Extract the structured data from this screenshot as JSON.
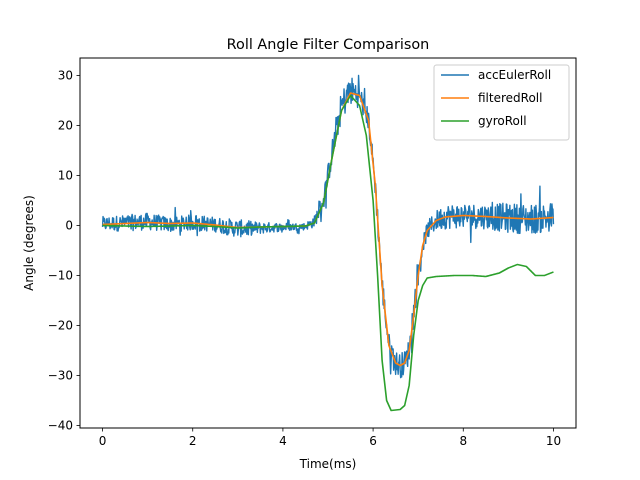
{
  "chart_data": {
    "type": "line",
    "title": "Roll Angle Filter Comparison",
    "xlabel": "Time(ms)",
    "ylabel": "Angle (degrees)",
    "xlim": [
      -0.5,
      10.5
    ],
    "ylim": [
      -40.5,
      33.5
    ],
    "xticks": [
      0,
      2,
      4,
      6,
      8,
      10
    ],
    "yticks": [
      -40,
      -30,
      -20,
      -10,
      0,
      10,
      20,
      30
    ],
    "grid": false,
    "legend": {
      "placement": "top-right"
    },
    "series": [
      {
        "name": "accEulerRoll",
        "color": "#1f77b4",
        "noisy": true,
        "x": [
          0,
          0.5,
          1,
          1.5,
          2,
          2.5,
          3,
          3.5,
          4,
          4.5,
          4.7,
          4.9,
          5.1,
          5.3,
          5.5,
          5.7,
          5.9,
          6.05,
          6.2,
          6.35,
          6.5,
          6.6,
          6.7,
          6.8,
          6.9,
          7.0,
          7.1,
          7.2,
          7.4,
          7.6,
          8.0,
          8.5,
          9.0,
          9.5,
          10
        ],
        "y": [
          0.3,
          0.5,
          0.8,
          0.2,
          0.6,
          0.2,
          -0.6,
          -0.5,
          -0.3,
          -0.2,
          0.8,
          5,
          15,
          24,
          27,
          26,
          21,
          8,
          -12,
          -24,
          -27.5,
          -28,
          -27.5,
          -25,
          -18,
          -10,
          -4,
          -1,
          1,
          1.8,
          2,
          1.8,
          1.5,
          1.3,
          1.7
        ],
        "noise_amp": [
          1.5,
          1.6,
          1.7,
          1.5,
          1.6,
          1.5,
          1.8,
          1.2,
          0.8,
          0.7,
          1.2,
          2.0,
          2.5,
          3.0,
          3.0,
          2.5,
          2.0,
          2.5,
          2.5,
          2.5,
          2.5,
          2.5,
          2.5,
          2.5,
          2.0,
          2.0,
          1.5,
          1.8,
          2.0,
          2.5,
          2.5,
          2.5,
          3.0,
          3.0,
          3.0
        ]
      },
      {
        "name": "filteredRoll",
        "color": "#ff7f0e",
        "noisy": false,
        "x": [
          0,
          0.5,
          1,
          1.5,
          2,
          2.5,
          3,
          3.5,
          4,
          4.5,
          4.7,
          4.9,
          5.1,
          5.3,
          5.5,
          5.7,
          5.9,
          6.05,
          6.2,
          6.35,
          6.5,
          6.6,
          6.7,
          6.8,
          6.9,
          7.0,
          7.1,
          7.2,
          7.4,
          7.6,
          8.0,
          8.5,
          9.0,
          9.5,
          10
        ],
        "y": [
          0.2,
          0.4,
          0.6,
          0.4,
          0.5,
          0.1,
          -0.4,
          -0.3,
          -0.2,
          -0.1,
          0.5,
          4.5,
          14,
          23,
          26.5,
          26,
          21,
          8,
          -12,
          -24,
          -27.5,
          -28,
          -27.5,
          -25,
          -18,
          -10,
          -4,
          -1,
          1,
          1.7,
          2,
          1.8,
          1.5,
          1.3,
          1.6
        ]
      },
      {
        "name": "gyroRoll",
        "color": "#2ca02c",
        "noisy": false,
        "x": [
          0,
          0.5,
          1,
          1.5,
          2,
          2.5,
          3,
          3.5,
          4,
          4.5,
          4.7,
          4.9,
          5.1,
          5.3,
          5.5,
          5.7,
          5.85,
          6.0,
          6.1,
          6.2,
          6.3,
          6.4,
          6.6,
          6.7,
          6.8,
          6.9,
          7.0,
          7.1,
          7.2,
          7.4,
          7.8,
          8.2,
          8.5,
          8.8,
          9.0,
          9.2,
          9.4,
          9.6,
          9.8,
          10
        ],
        "y": [
          0,
          -0.1,
          -0.2,
          -0.1,
          0,
          -0.2,
          -0.5,
          -0.3,
          -0.2,
          -0.1,
          0.5,
          4.5,
          14,
          23,
          26,
          24,
          18,
          5,
          -10,
          -27,
          -35,
          -37,
          -36.8,
          -36,
          -32,
          -22,
          -15,
          -12,
          -10.5,
          -10.2,
          -10,
          -10,
          -10.2,
          -9.5,
          -8.5,
          -7.8,
          -8.2,
          -10,
          -10,
          -9.3
        ]
      }
    ]
  }
}
